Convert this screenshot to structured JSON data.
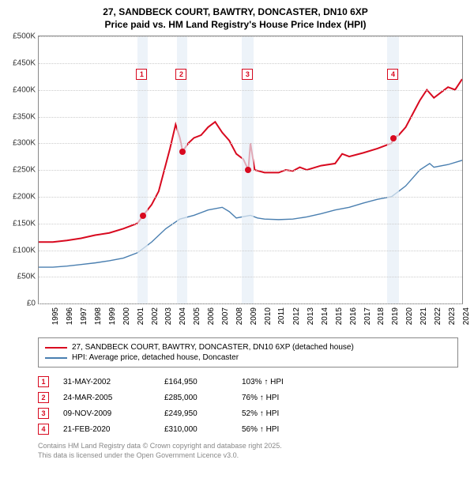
{
  "title_line1": "27, SANDBECK COURT, BAWTRY, DONCASTER, DN10 6XP",
  "title_line2": "Price paid vs. HM Land Registry's House Price Index (HPI)",
  "chart": {
    "type": "line",
    "x_min_year": 1995,
    "x_max_year": 2025,
    "x_tick_years": [
      1995,
      1996,
      1997,
      1998,
      1999,
      2000,
      2001,
      2002,
      2003,
      2004,
      2005,
      2006,
      2007,
      2008,
      2009,
      2010,
      2011,
      2012,
      2013,
      2014,
      2015,
      2016,
      2017,
      2018,
      2019,
      2020,
      2021,
      2022,
      2023,
      2024,
      2025
    ],
    "y_min": 0,
    "y_max": 500000,
    "y_tick_step": 50000,
    "y_tick_labels": [
      "£0",
      "£50K",
      "£100K",
      "£150K",
      "£200K",
      "£250K",
      "£300K",
      "£350K",
      "£400K",
      "£450K",
      "£500K"
    ],
    "grid_color": "#cccccc",
    "background_color": "#ffffff",
    "band_color": "#e6eef7",
    "bands_years": [
      [
        2002.0,
        2002.7
      ],
      [
        2004.8,
        2005.5
      ],
      [
        2009.4,
        2010.2
      ],
      [
        2019.7,
        2020.5
      ]
    ],
    "series": [
      {
        "name": "27, SANDBECK COURT, BAWTRY, DONCASTER, DN10 6XP (detached house)",
        "color": "#d8091f",
        "width": 2,
        "data": [
          [
            1995,
            115000
          ],
          [
            1996,
            115000
          ],
          [
            1997,
            118000
          ],
          [
            1998,
            122000
          ],
          [
            1999,
            128000
          ],
          [
            2000,
            132000
          ],
          [
            2001,
            140000
          ],
          [
            2002,
            150000
          ],
          [
            2002.4,
            164950
          ],
          [
            2003,
            185000
          ],
          [
            2003.5,
            210000
          ],
          [
            2004,
            260000
          ],
          [
            2004.3,
            290000
          ],
          [
            2004.7,
            335000
          ],
          [
            2005,
            310000
          ],
          [
            2005.2,
            285000
          ],
          [
            2005.6,
            300000
          ],
          [
            2006,
            310000
          ],
          [
            2006.5,
            315000
          ],
          [
            2007,
            330000
          ],
          [
            2007.5,
            340000
          ],
          [
            2008,
            320000
          ],
          [
            2008.5,
            305000
          ],
          [
            2009,
            280000
          ],
          [
            2009.5,
            270000
          ],
          [
            2009.85,
            249950
          ],
          [
            2010,
            300000
          ],
          [
            2010.3,
            250000
          ],
          [
            2011,
            245000
          ],
          [
            2012,
            245000
          ],
          [
            2012.5,
            250000
          ],
          [
            2013,
            248000
          ],
          [
            2013.5,
            255000
          ],
          [
            2014,
            250000
          ],
          [
            2015,
            258000
          ],
          [
            2016,
            262000
          ],
          [
            2016.5,
            280000
          ],
          [
            2017,
            275000
          ],
          [
            2018,
            282000
          ],
          [
            2019,
            290000
          ],
          [
            2019.5,
            295000
          ],
          [
            2020,
            300000
          ],
          [
            2020.15,
            310000
          ],
          [
            2020.5,
            315000
          ],
          [
            2021,
            330000
          ],
          [
            2021.5,
            355000
          ],
          [
            2022,
            380000
          ],
          [
            2022.5,
            400000
          ],
          [
            2023,
            385000
          ],
          [
            2023.5,
            395000
          ],
          [
            2024,
            405000
          ],
          [
            2024.5,
            400000
          ],
          [
            2025,
            420000
          ]
        ]
      },
      {
        "name": "HPI: Average price, detached house, Doncaster",
        "color": "#4a7fb0",
        "width": 1.4,
        "data": [
          [
            1995,
            68000
          ],
          [
            1996,
            68000
          ],
          [
            1997,
            70000
          ],
          [
            1998,
            73000
          ],
          [
            1999,
            76000
          ],
          [
            2000,
            80000
          ],
          [
            2001,
            85000
          ],
          [
            2002,
            95000
          ],
          [
            2003,
            115000
          ],
          [
            2004,
            140000
          ],
          [
            2005,
            158000
          ],
          [
            2006,
            165000
          ],
          [
            2007,
            175000
          ],
          [
            2008,
            180000
          ],
          [
            2008.5,
            172000
          ],
          [
            2009,
            160000
          ],
          [
            2010,
            165000
          ],
          [
            2010.5,
            160000
          ],
          [
            2011,
            158000
          ],
          [
            2012,
            157000
          ],
          [
            2013,
            158000
          ],
          [
            2014,
            162000
          ],
          [
            2015,
            168000
          ],
          [
            2016,
            175000
          ],
          [
            2017,
            180000
          ],
          [
            2018,
            188000
          ],
          [
            2019,
            195000
          ],
          [
            2020,
            200000
          ],
          [
            2021,
            220000
          ],
          [
            2022,
            250000
          ],
          [
            2022.7,
            262000
          ],
          [
            2023,
            255000
          ],
          [
            2024,
            260000
          ],
          [
            2025,
            268000
          ]
        ]
      }
    ],
    "marker_boxes": [
      {
        "n": "1",
        "year": 2002.3,
        "y": 430000,
        "border": "#d8091f",
        "text_color": "#d8091f"
      },
      {
        "n": "2",
        "year": 2005.1,
        "y": 430000,
        "border": "#d8091f",
        "text_color": "#d8091f"
      },
      {
        "n": "3",
        "year": 2009.8,
        "y": 430000,
        "border": "#d8091f",
        "text_color": "#d8091f"
      },
      {
        "n": "4",
        "year": 2020.1,
        "y": 430000,
        "border": "#d8091f",
        "text_color": "#d8091f"
      }
    ],
    "marker_dots": [
      {
        "year": 2002.4,
        "y": 164950,
        "color": "#d8091f"
      },
      {
        "year": 2005.2,
        "y": 285000,
        "color": "#d8091f"
      },
      {
        "year": 2009.85,
        "y": 249950,
        "color": "#d8091f"
      },
      {
        "year": 2020.15,
        "y": 310000,
        "color": "#d8091f"
      }
    ]
  },
  "legend": [
    {
      "label": "27, SANDBECK COURT, BAWTRY, DONCASTER, DN10 6XP (detached house)",
      "color": "#d8091f"
    },
    {
      "label": "HPI: Average price, detached house, Doncaster",
      "color": "#4a7fb0"
    }
  ],
  "transactions": [
    {
      "n": "1",
      "date": "31-MAY-2002",
      "price": "£164,950",
      "pct": "103%",
      "note": "HPI",
      "border": "#d8091f"
    },
    {
      "n": "2",
      "date": "24-MAR-2005",
      "price": "£285,000",
      "pct": "76%",
      "note": "HPI",
      "border": "#d8091f"
    },
    {
      "n": "3",
      "date": "09-NOV-2009",
      "price": "£249,950",
      "pct": "52%",
      "note": "HPI",
      "border": "#d8091f"
    },
    {
      "n": "4",
      "date": "21-FEB-2020",
      "price": "£310,000",
      "pct": "56%",
      "note": "HPI",
      "border": "#d8091f"
    }
  ],
  "footer_line1": "Contains HM Land Registry data © Crown copyright and database right 2025.",
  "footer_line2": "This data is licensed under the Open Government Licence v3.0."
}
